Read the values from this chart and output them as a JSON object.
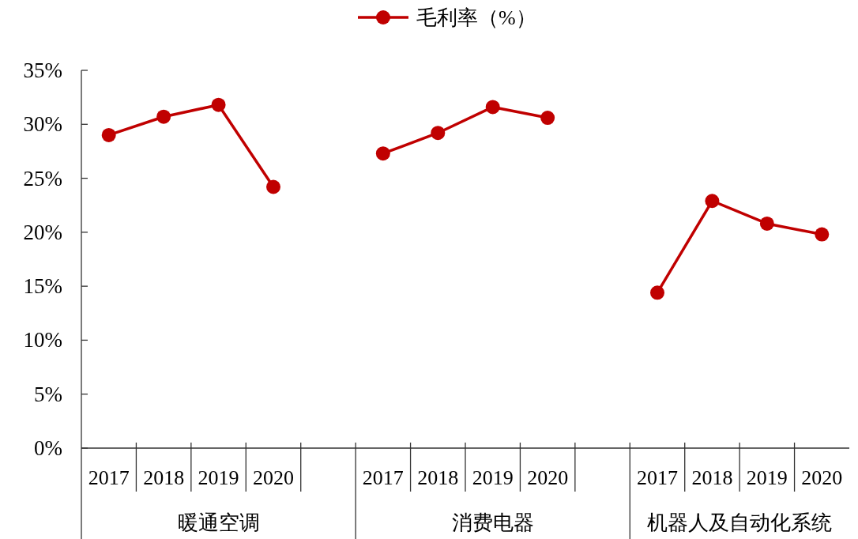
{
  "chart_data": {
    "type": "line",
    "categories": [
      "2017",
      "2018",
      "2019",
      "2020",
      null,
      "2017",
      "2018",
      "2019",
      "2020",
      null,
      "2017",
      "2018",
      "2019",
      "2020"
    ],
    "series": [
      {
        "name": "毛利率（%）",
        "color": "#c00000",
        "values": [
          29.0,
          30.7,
          31.8,
          24.2,
          null,
          27.3,
          29.2,
          31.6,
          30.6,
          null,
          14.4,
          22.9,
          20.8,
          19.8
        ]
      }
    ],
    "ylim": [
      0,
      35
    ],
    "yticks": [
      {
        "value": 0,
        "label": "0%"
      },
      {
        "value": 5,
        "label": "5%"
      },
      {
        "value": 10,
        "label": "10%"
      },
      {
        "value": 15,
        "label": "15%"
      },
      {
        "value": 20,
        "label": "20%"
      },
      {
        "value": 25,
        "label": "25%"
      },
      {
        "value": 30,
        "label": "30%"
      },
      {
        "value": 35,
        "label": "35%"
      }
    ],
    "annotations": [
      "暖通空调",
      "消费电器",
      "机器人及自动化系统"
    ],
    "legend": "top",
    "marker": "circle",
    "line_style": "solid"
  }
}
